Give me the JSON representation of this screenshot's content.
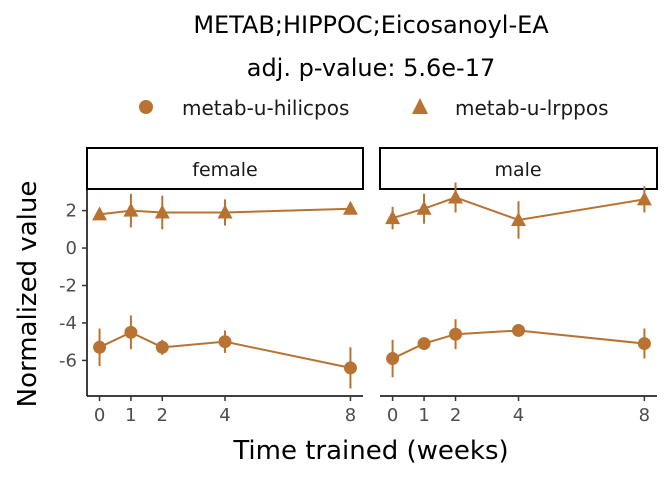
{
  "title_line1": "METAB;HIPPOC;Eicosanoyl-EA",
  "title_line2": "adj. p-value: 5.6e-17",
  "color": "#B87333",
  "legend": [
    {
      "label": "metab-u-hilicpos",
      "shape": "circle"
    },
    {
      "label": "metab-u-lrppos",
      "shape": "triangle"
    }
  ],
  "chart_data": {
    "type": "line",
    "xlabel": "Time trained (weeks)",
    "ylabel": "Normalized value",
    "x_ticks": [
      0,
      1,
      2,
      4,
      8
    ],
    "y_ticks": [
      2,
      0,
      -2,
      -4,
      -6
    ],
    "xlim": [
      -0.4,
      8.4
    ],
    "ylim": [
      -7.9,
      3.1
    ],
    "panels": [
      {
        "label": "female",
        "series": [
          {
            "name": "metab-u-hilicpos",
            "shape": "circle",
            "x": [
              0,
              1,
              2,
              4,
              8
            ],
            "y": [
              -5.3,
              -4.5,
              -5.3,
              -5.0,
              -6.4
            ],
            "err": [
              1.0,
              0.9,
              0.4,
              0.6,
              1.1
            ]
          },
          {
            "name": "metab-u-lrppos",
            "shape": "triangle",
            "x": [
              0,
              1,
              2,
              4,
              8
            ],
            "y": [
              1.8,
              2.0,
              1.9,
              1.9,
              2.1
            ],
            "err": [
              0.0,
              0.9,
              0.9,
              0.7,
              0.0
            ]
          }
        ]
      },
      {
        "label": "male",
        "series": [
          {
            "name": "metab-u-hilicpos",
            "shape": "circle",
            "x": [
              0,
              1,
              2,
              4,
              8
            ],
            "y": [
              -5.9,
              -5.1,
              -4.6,
              -4.4,
              -5.1
            ],
            "err": [
              1.0,
              0.0,
              0.8,
              0.0,
              0.8
            ]
          },
          {
            "name": "metab-u-lrppos",
            "shape": "triangle",
            "x": [
              0,
              1,
              2,
              4,
              8
            ],
            "y": [
              1.6,
              2.1,
              2.7,
              1.5,
              2.6
            ],
            "err": [
              0.6,
              0.8,
              0.8,
              1.0,
              0.7
            ]
          }
        ]
      }
    ]
  }
}
